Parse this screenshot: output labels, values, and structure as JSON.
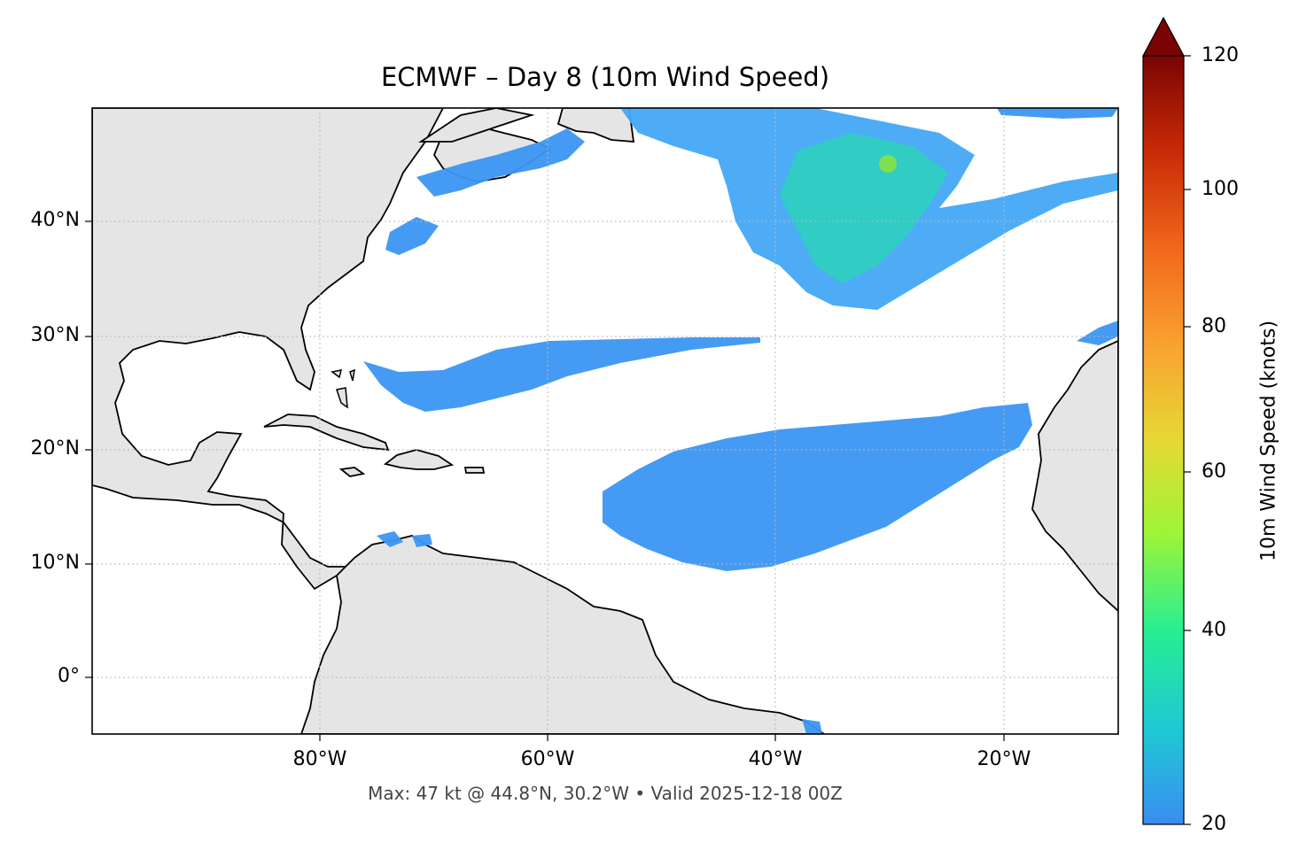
{
  "title": "ECMWF – Day 8 (10m Wind Speed)",
  "footer": "Max: 47 kt @ 44.8°N, 30.2°W • Valid 2025-12-18 00Z",
  "map": {
    "lon_range": [
      -100,
      -10
    ],
    "lat_range": [
      -5,
      50
    ],
    "lat_ticks": [
      "40°N",
      "30°N",
      "20°N",
      "10°N",
      "0°"
    ],
    "lon_ticks": [
      "80°W",
      "60°W",
      "40°W",
      "20°W"
    ],
    "land_color": "#e5e5e5",
    "ocean_color": "#ffffff",
    "grid": true
  },
  "colorbar": {
    "label": "10m Wind Speed (knots)",
    "ticks": [
      "120",
      "100",
      "80",
      "60",
      "40",
      "20"
    ],
    "range": [
      20,
      120
    ],
    "extend": "max",
    "colors": [
      "#3a8df0",
      "#1fc7d6",
      "#26ee93",
      "#9ef536",
      "#e6d833",
      "#f9a331",
      "#f1671b",
      "#c62906",
      "#7a0403"
    ]
  },
  "max_wind": {
    "value_kt": 47,
    "lat": 44.8,
    "lon": -30.2
  }
}
